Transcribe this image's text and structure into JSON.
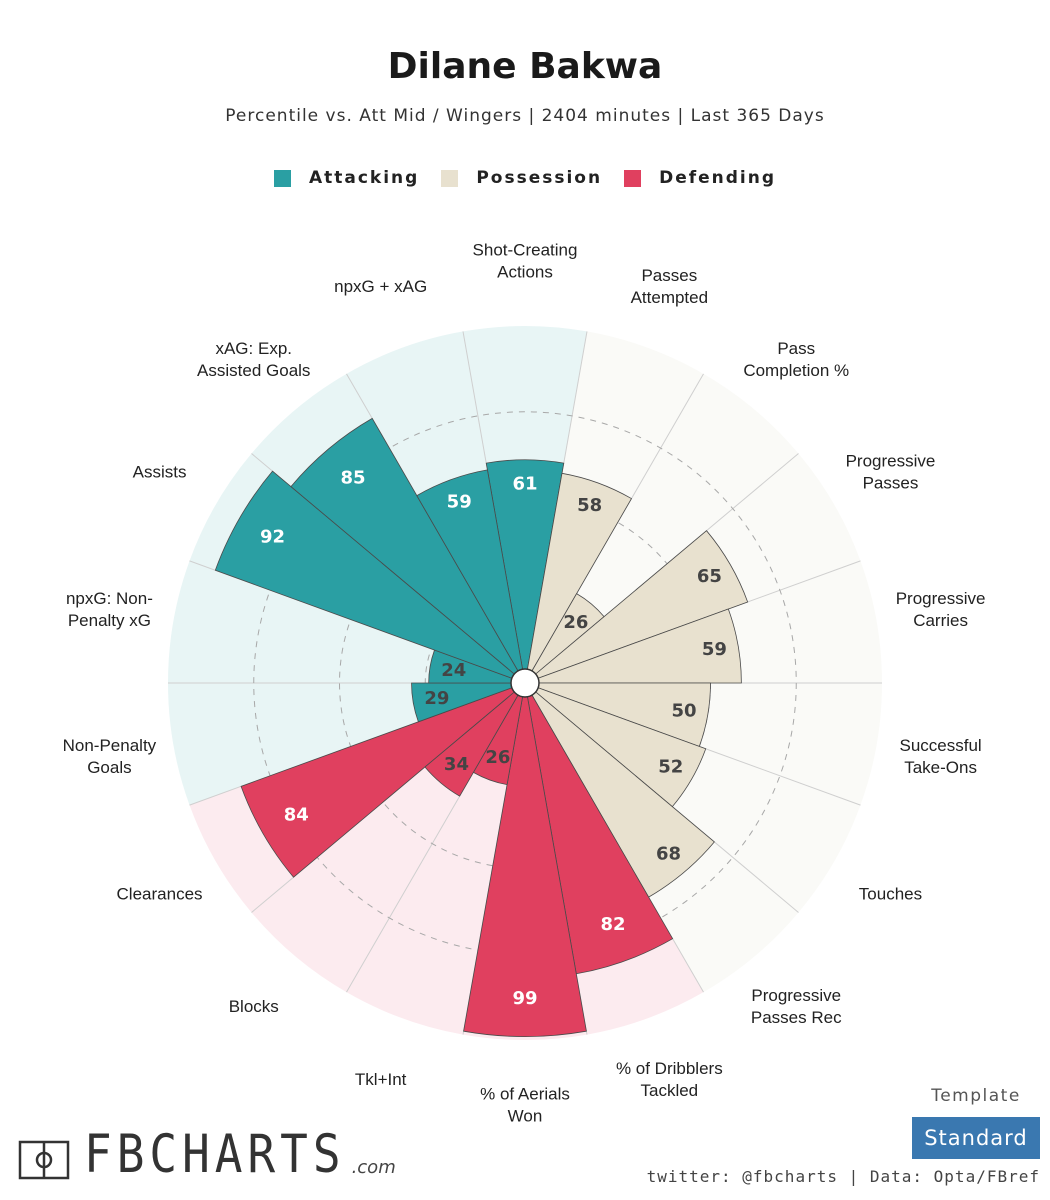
{
  "header": {
    "title": "Dilane Bakwa",
    "subtitle": "Percentile vs. Att Mid / Wingers | 2404 minutes | Last 365 Days"
  },
  "legend": [
    {
      "label": "Attacking",
      "color": "#2a9fa3"
    },
    {
      "label": "Possession",
      "color": "#e8e1cf"
    },
    {
      "label": "Defending",
      "color": "#e0405f"
    }
  ],
  "chart_data": {
    "type": "radar_bar",
    "title": "Dilane Bakwa",
    "subtitle": "Percentile vs. Att Mid / Wingers | 2404 minutes | Last 365 Days",
    "range": [
      0,
      100
    ],
    "gridlines": [
      25,
      50,
      75,
      100
    ],
    "categories": [
      {
        "label": "Shot-Creating\nActions",
        "value": 61,
        "group": "Attacking"
      },
      {
        "label": "Passes\nAttempted",
        "value": 58,
        "group": "Possession"
      },
      {
        "label": "Pass\nCompletion %",
        "value": 26,
        "group": "Possession"
      },
      {
        "label": "Progressive\nPasses",
        "value": 65,
        "group": "Possession"
      },
      {
        "label": "Progressive\nCarries",
        "value": 59,
        "group": "Possession"
      },
      {
        "label": "Successful\nTake-Ons",
        "value": 50,
        "group": "Possession"
      },
      {
        "label": "Touches",
        "value": 52,
        "group": "Possession"
      },
      {
        "label": "Progressive\nPasses Rec",
        "value": 68,
        "group": "Possession"
      },
      {
        "label": "% of Dribblers\nTackled",
        "value": 82,
        "group": "Defending"
      },
      {
        "label": "% of Aerials\nWon",
        "value": 99,
        "group": "Defending"
      },
      {
        "label": "Tkl+Int",
        "value": 26,
        "group": "Defending"
      },
      {
        "label": "Blocks",
        "value": 34,
        "group": "Defending"
      },
      {
        "label": "Clearances",
        "value": 84,
        "group": "Defending"
      },
      {
        "label": "Non-Penalty\nGoals",
        "value": 29,
        "group": "Attacking"
      },
      {
        "label": "npxG: Non-\nPenalty xG",
        "value": 24,
        "group": "Attacking"
      },
      {
        "label": "Assists",
        "value": 92,
        "group": "Attacking"
      },
      {
        "label": "xAG: Exp.\nAssisted Goals",
        "value": 85,
        "group": "Attacking"
      },
      {
        "label": "npxG + xAG",
        "value": 59,
        "group": "Attacking"
      }
    ],
    "group_colors": {
      "Attacking": {
        "bar": "#2a9fa3",
        "bg": "#e8f5f5",
        "text": "#ffffff"
      },
      "Possession": {
        "bar": "#e8e1cf",
        "bg": "#fafaf7",
        "text": "#444444"
      },
      "Defending": {
        "bar": "#e0405f",
        "bg": "#fcebef",
        "text": "#ffffff"
      }
    }
  },
  "footer": {
    "template_label": "Template",
    "template_value": "Standard",
    "template_color": "#3a78b0",
    "credit": "twitter: @fbcharts | Data: Opta/FBref",
    "logo_text": "FBCHARTS",
    "logo_suffix": ".com"
  }
}
